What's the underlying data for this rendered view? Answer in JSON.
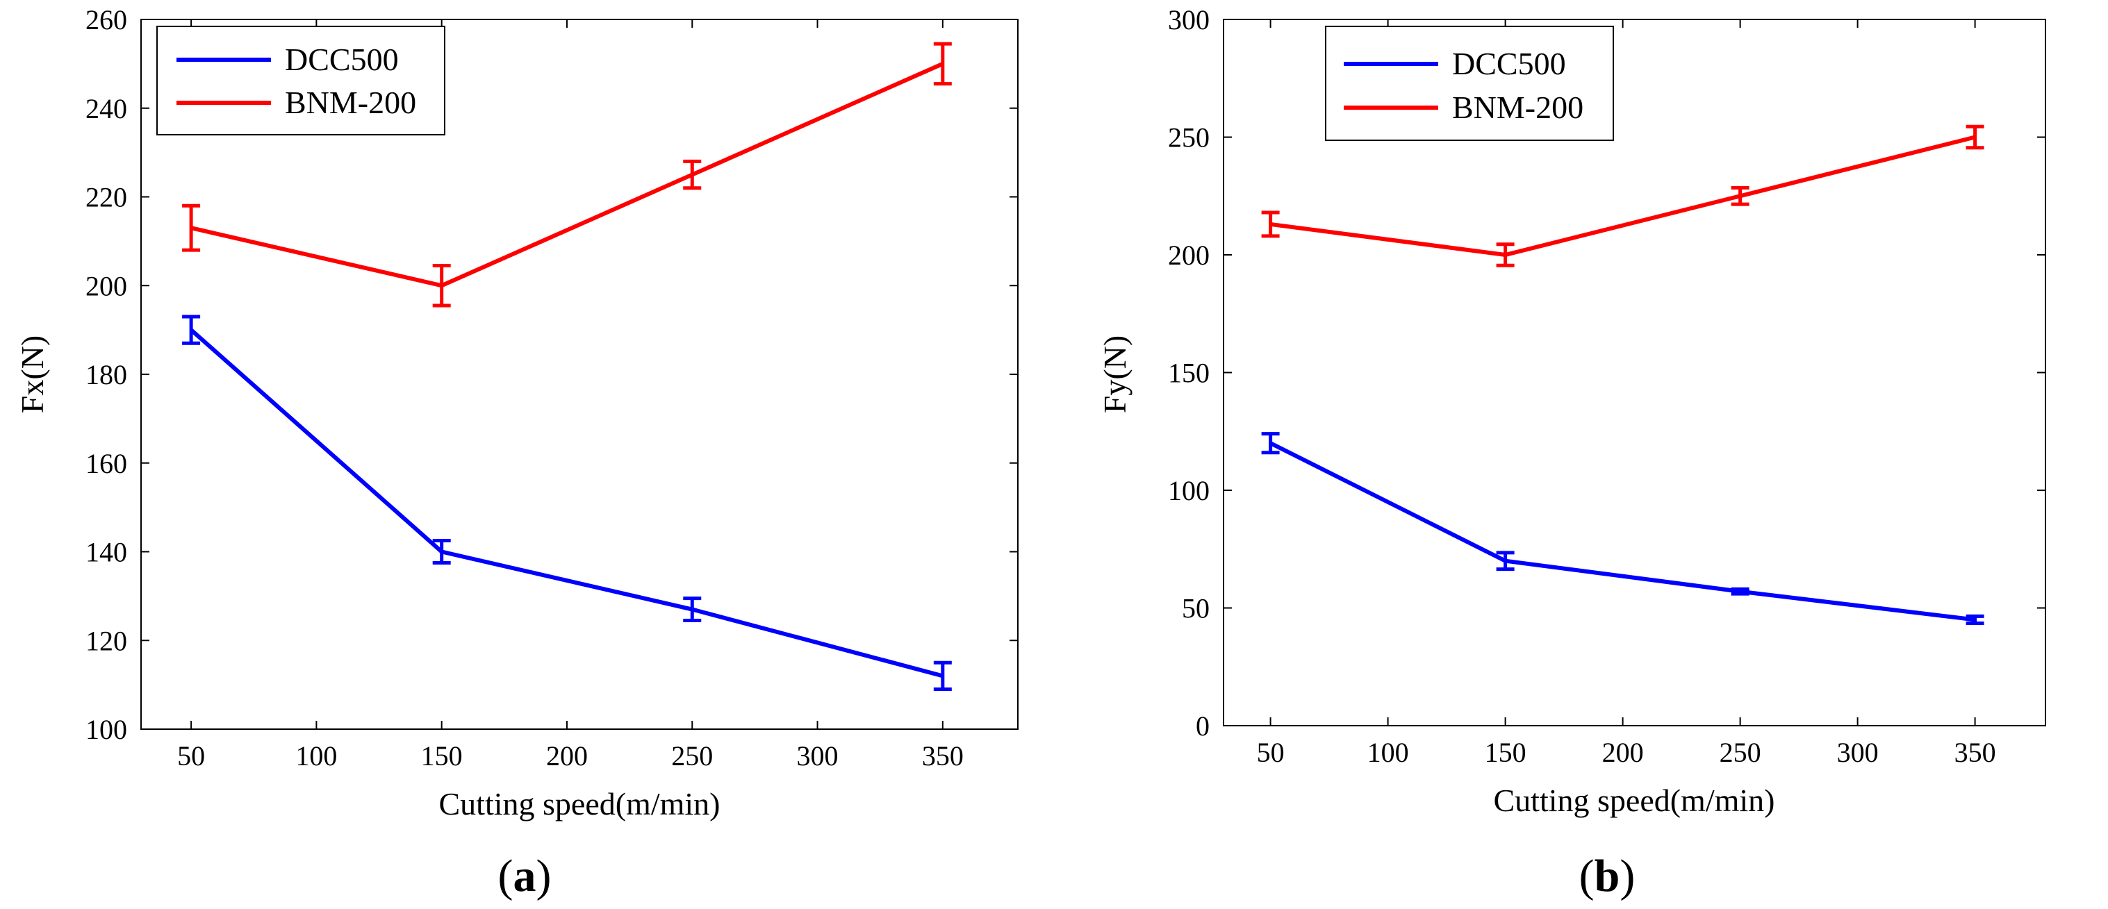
{
  "panels": [
    {
      "label_open": "(",
      "label_letter": "a",
      "label_close": ")"
    },
    {
      "label_open": "(",
      "label_letter": "b",
      "label_close": ")"
    }
  ],
  "chart_data": [
    {
      "type": "line",
      "title": "",
      "xlabel": "Cutting speed(m/min)",
      "ylabel": "Fx(N)",
      "xlim": [
        30,
        380
      ],
      "ylim": [
        100,
        260
      ],
      "xticks": [
        50,
        100,
        150,
        200,
        250,
        300,
        350
      ],
      "yticks": [
        100,
        120,
        140,
        160,
        180,
        200,
        220,
        240,
        260
      ],
      "grid": false,
      "legend_position": "top-left",
      "x": [
        50,
        150,
        250,
        350
      ],
      "series": [
        {
          "name": "DCC500",
          "color": "#0000ff",
          "values": [
            190,
            140,
            127,
            112
          ],
          "errors": [
            3,
            2.5,
            2.5,
            3
          ]
        },
        {
          "name": "BNM-200",
          "color": "#ff0000",
          "values": [
            213,
            200,
            225,
            250
          ],
          "errors": [
            5,
            4.5,
            3,
            4.5
          ]
        }
      ]
    },
    {
      "type": "line",
      "title": "",
      "xlabel": "Cutting speed(m/min)",
      "ylabel": "Fy(N)",
      "xlim": [
        30,
        380
      ],
      "ylim": [
        0,
        300
      ],
      "xticks": [
        50,
        100,
        150,
        200,
        250,
        300,
        350
      ],
      "yticks": [
        0,
        50,
        100,
        150,
        200,
        250,
        300
      ],
      "grid": false,
      "legend_position": "top-left",
      "x": [
        50,
        150,
        250,
        350
      ],
      "series": [
        {
          "name": "DCC500",
          "color": "#0000ff",
          "values": [
            120,
            70,
            57,
            45
          ],
          "errors": [
            4,
            3.5,
            1,
            1.5
          ]
        },
        {
          "name": "BNM-200",
          "color": "#ff0000",
          "values": [
            213,
            200,
            225,
            250
          ],
          "errors": [
            5,
            4.5,
            3.5,
            4.5
          ]
        }
      ]
    }
  ]
}
